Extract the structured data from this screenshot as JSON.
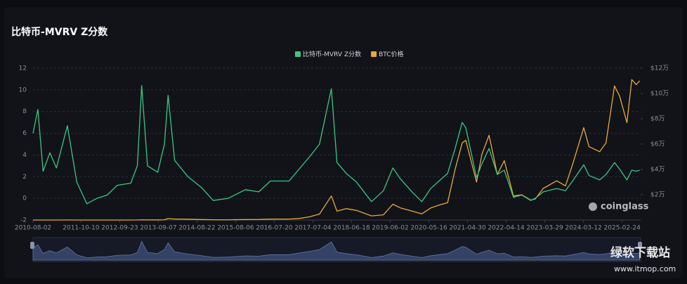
{
  "chart_data": {
    "type": "line",
    "title": "比特币-MVRV Z分数",
    "x": [
      "2010-08-02",
      "2010-09-15",
      "2010-11-01",
      "2011-01-01",
      "2011-03-01",
      "2011-06-08",
      "2011-09-01",
      "2011-12-01",
      "2012-03-01",
      "2012-06-01",
      "2012-09-01",
      "2013-01-01",
      "2013-03-01",
      "2013-04-09",
      "2013-06-01",
      "2013-09-01",
      "2013-11-01",
      "2013-12-04",
      "2014-02-01",
      "2014-06-01",
      "2014-10-01",
      "2015-01-15",
      "2015-06-01",
      "2015-11-01",
      "2016-03-01",
      "2016-06-15",
      "2016-12-01",
      "2017-03-01",
      "2017-06-01",
      "2017-09-01",
      "2017-12-17",
      "2018-02-06",
      "2018-05-01",
      "2018-08-01",
      "2018-12-15",
      "2019-04-01",
      "2019-06-26",
      "2019-09-01",
      "2019-12-15",
      "2020-03-13",
      "2020-06-01",
      "2020-08-15",
      "2020-11-01",
      "2021-01-08",
      "2021-03-13",
      "2021-04-14",
      "2021-07-20",
      "2021-09-07",
      "2021-11-10",
      "2022-01-24",
      "2022-03-28",
      "2022-06-18",
      "2022-09-01",
      "2022-11-21",
      "2023-01-01",
      "2023-03-15",
      "2023-07-14",
      "2023-10-01",
      "2023-12-05",
      "2024-03-14",
      "2024-05-01",
      "2024-08-05",
      "2024-10-01",
      "2024-12-17",
      "2025-02-01",
      "2025-04-08",
      "2025-05-22",
      "2025-07-01",
      "2025-08-01"
    ],
    "series": [
      {
        "name": "比特币-MVRV Z分数",
        "color": "#3cc77f",
        "axis": "y",
        "values": [
          6,
          8.2,
          2.5,
          4.2,
          2.8,
          6.7,
          1.5,
          -0.5,
          0,
          0.3,
          1.2,
          1.4,
          3,
          10.4,
          3,
          2.4,
          5,
          9.5,
          3.5,
          2,
          1,
          -0.2,
          0,
          0.8,
          0.6,
          1.6,
          1.6,
          2.7,
          3.8,
          5,
          10.1,
          3.3,
          2.3,
          1.5,
          -0.3,
          0.7,
          2.8,
          1.8,
          0.6,
          -0.3,
          0.9,
          1.6,
          2.3,
          4.6,
          7,
          6.5,
          1.9,
          3.2,
          4.6,
          2.2,
          2.6,
          0.1,
          0.3,
          -0.2,
          0,
          0.6,
          0.9,
          0.7,
          1.6,
          3.1,
          2.1,
          1.7,
          2.2,
          3.3,
          2.7,
          1.7,
          2.6,
          2.5,
          2.6
        ]
      },
      {
        "name": "BTC价格",
        "color": "#e8a93a",
        "axis": "y2",
        "values": [
          0.07,
          0.06,
          0.3,
          0.3,
          0.9,
          30,
          8,
          3,
          5,
          5.3,
          10,
          13,
          34,
          230,
          120,
          130,
          200,
          1150,
          800,
          640,
          380,
          200,
          230,
          380,
          430,
          700,
          750,
          1200,
          2500,
          4700,
          19000,
          7000,
          9000,
          7600,
          3300,
          4100,
          12500,
          9600,
          7100,
          4900,
          9500,
          11800,
          13700,
          40000,
          61000,
          63000,
          30000,
          52000,
          67000,
          36000,
          47000,
          19000,
          20000,
          15800,
          16600,
          25000,
          31000,
          27000,
          44000,
          73000,
          58000,
          54000,
          61000,
          106000,
          98000,
          77000,
          111000,
          107000,
          110000
        ]
      }
    ],
    "xlim": [
      "2010-08-02",
      "2025-08-10"
    ],
    "xticks": [
      "2010-08-02",
      "2011-10-10",
      "2012-09-23",
      "2013-09-07",
      "2014-08-22",
      "2015-08-06",
      "2016-07-20",
      "2017-07-04",
      "2018-06-18",
      "2019-06-02",
      "2020-05-16",
      "2021-04-30",
      "2022-04-14",
      "2023-03-29",
      "2024-03-12",
      "2025-02-24"
    ],
    "ylim": [
      -2,
      12
    ],
    "yticks": [
      -2,
      0,
      2,
      4,
      6,
      8,
      10,
      12
    ],
    "y2lim": [
      0,
      120000
    ],
    "y2ticks": [
      {
        "value": 20000,
        "label": "$2万"
      },
      {
        "value": 40000,
        "label": "$4万"
      },
      {
        "value": 60000,
        "label": "$6万"
      },
      {
        "value": 80000,
        "label": "$8万"
      },
      {
        "value": 100000,
        "label": "$10万"
      },
      {
        "value": 120000,
        "label": "$12万"
      }
    ],
    "grid": true,
    "legend": "top",
    "watermark": "coinglass",
    "site_watermark": {
      "name": "绿软下载站",
      "url": "www.itmop.com"
    }
  }
}
